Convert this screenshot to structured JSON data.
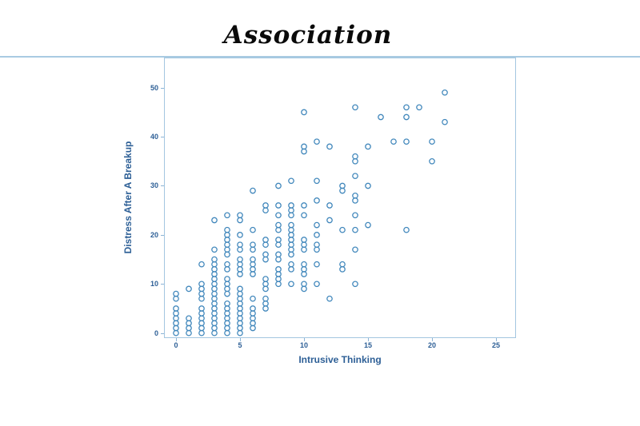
{
  "header": {
    "title": "Association"
  },
  "colors": {
    "frame": "#a3c6e0",
    "title_rule": "#a9cbe2",
    "tick_mark": "#8db4d6",
    "tick_label": "#2d5f96",
    "axis_label": "#2d5f96",
    "marker": "#4288bc",
    "title_text": "#0a0a0a",
    "background": "#ffffff"
  },
  "chart_data": {
    "type": "scatter",
    "title": "Association",
    "xlabel": "Intrusive Thinking",
    "ylabel": "Distress After A Breakup",
    "xlim": [
      -0.94,
      26.56
    ],
    "ylim": [
      -1.03,
      56.14
    ],
    "xticks": [
      0,
      5,
      10,
      15,
      20,
      25
    ],
    "yticks": [
      0,
      10,
      20,
      30,
      40,
      50
    ],
    "grid": false,
    "legend": null,
    "marker": {
      "shape": "open-circle",
      "radius_px": 3.2,
      "color": "#4288bc"
    },
    "points": [
      [
        0,
        0
      ],
      [
        0,
        1
      ],
      [
        0,
        2
      ],
      [
        0,
        3
      ],
      [
        0,
        4
      ],
      [
        0,
        5
      ],
      [
        0,
        7
      ],
      [
        0,
        8
      ],
      [
        1,
        0
      ],
      [
        1,
        1
      ],
      [
        1,
        2
      ],
      [
        1,
        3
      ],
      [
        1,
        9
      ],
      [
        2,
        0
      ],
      [
        2,
        1
      ],
      [
        2,
        2
      ],
      [
        2,
        3
      ],
      [
        2,
        4
      ],
      [
        2,
        5
      ],
      [
        2,
        7
      ],
      [
        2,
        8
      ],
      [
        2,
        9
      ],
      [
        2,
        10
      ],
      [
        2,
        14
      ],
      [
        3,
        0
      ],
      [
        3,
        1
      ],
      [
        3,
        2
      ],
      [
        3,
        3
      ],
      [
        3,
        4
      ],
      [
        3,
        5
      ],
      [
        3,
        6
      ],
      [
        3,
        7
      ],
      [
        3,
        8
      ],
      [
        3,
        9
      ],
      [
        3,
        10
      ],
      [
        3,
        11
      ],
      [
        3,
        12
      ],
      [
        3,
        13
      ],
      [
        3,
        14
      ],
      [
        3,
        15
      ],
      [
        3,
        17
      ],
      [
        3,
        23
      ],
      [
        4,
        0
      ],
      [
        4,
        1
      ],
      [
        4,
        2
      ],
      [
        4,
        3
      ],
      [
        4,
        4
      ],
      [
        4,
        5
      ],
      [
        4,
        6
      ],
      [
        4,
        8
      ],
      [
        4,
        9
      ],
      [
        4,
        10
      ],
      [
        4,
        11
      ],
      [
        4,
        13
      ],
      [
        4,
        14
      ],
      [
        4,
        16
      ],
      [
        4,
        17
      ],
      [
        4,
        18
      ],
      [
        4,
        19
      ],
      [
        4,
        20
      ],
      [
        4,
        21
      ],
      [
        4,
        24
      ],
      [
        5,
        0
      ],
      [
        5,
        1
      ],
      [
        5,
        2
      ],
      [
        5,
        3
      ],
      [
        5,
        4
      ],
      [
        5,
        5
      ],
      [
        5,
        6
      ],
      [
        5,
        7
      ],
      [
        5,
        8
      ],
      [
        5,
        9
      ],
      [
        5,
        12
      ],
      [
        5,
        13
      ],
      [
        5,
        14
      ],
      [
        5,
        15
      ],
      [
        5,
        17
      ],
      [
        5,
        18
      ],
      [
        5,
        20
      ],
      [
        5,
        23
      ],
      [
        5,
        24
      ],
      [
        6,
        1
      ],
      [
        6,
        2
      ],
      [
        6,
        3
      ],
      [
        6,
        4
      ],
      [
        6,
        5
      ],
      [
        6,
        7
      ],
      [
        6,
        12
      ],
      [
        6,
        13
      ],
      [
        6,
        14
      ],
      [
        6,
        15
      ],
      [
        6,
        17
      ],
      [
        6,
        18
      ],
      [
        6,
        21
      ],
      [
        6,
        29
      ],
      [
        7,
        5
      ],
      [
        7,
        6
      ],
      [
        7,
        7
      ],
      [
        7,
        9
      ],
      [
        7,
        10
      ],
      [
        7,
        11
      ],
      [
        7,
        15
      ],
      [
        7,
        16
      ],
      [
        7,
        18
      ],
      [
        7,
        19
      ],
      [
        7,
        25
      ],
      [
        7,
        26
      ],
      [
        8,
        10
      ],
      [
        8,
        11
      ],
      [
        8,
        12
      ],
      [
        8,
        13
      ],
      [
        8,
        15
      ],
      [
        8,
        16
      ],
      [
        8,
        18
      ],
      [
        8,
        19
      ],
      [
        8,
        21
      ],
      [
        8,
        22
      ],
      [
        8,
        24
      ],
      [
        8,
        26
      ],
      [
        8,
        30
      ],
      [
        9,
        10
      ],
      [
        9,
        13
      ],
      [
        9,
        14
      ],
      [
        9,
        16
      ],
      [
        9,
        17
      ],
      [
        9,
        18
      ],
      [
        9,
        19
      ],
      [
        9,
        20
      ],
      [
        9,
        21
      ],
      [
        9,
        22
      ],
      [
        9,
        24
      ],
      [
        9,
        25
      ],
      [
        9,
        26
      ],
      [
        9,
        31
      ],
      [
        10,
        9
      ],
      [
        10,
        10
      ],
      [
        10,
        12
      ],
      [
        10,
        13
      ],
      [
        10,
        14
      ],
      [
        10,
        17
      ],
      [
        10,
        18
      ],
      [
        10,
        19
      ],
      [
        10,
        24
      ],
      [
        10,
        26
      ],
      [
        10,
        37
      ],
      [
        10,
        38
      ],
      [
        10,
        45
      ],
      [
        11,
        10
      ],
      [
        11,
        14
      ],
      [
        11,
        17
      ],
      [
        11,
        18
      ],
      [
        11,
        20
      ],
      [
        11,
        22
      ],
      [
        11,
        27
      ],
      [
        11,
        31
      ],
      [
        11,
        39
      ],
      [
        12,
        7
      ],
      [
        12,
        23
      ],
      [
        12,
        26
      ],
      [
        12,
        38
      ],
      [
        13,
        13
      ],
      [
        13,
        14
      ],
      [
        13,
        21
      ],
      [
        13,
        29
      ],
      [
        13,
        30
      ],
      [
        14,
        10
      ],
      [
        14,
        17
      ],
      [
        14,
        21
      ],
      [
        14,
        24
      ],
      [
        14,
        27
      ],
      [
        14,
        28
      ],
      [
        14,
        32
      ],
      [
        14,
        35
      ],
      [
        14,
        36
      ],
      [
        14,
        46
      ],
      [
        15,
        22
      ],
      [
        15,
        30
      ],
      [
        15,
        38
      ],
      [
        16,
        44
      ],
      [
        17,
        39
      ],
      [
        18,
        21
      ],
      [
        18,
        39
      ],
      [
        18,
        44
      ],
      [
        18,
        46
      ],
      [
        19,
        46
      ],
      [
        20,
        35
      ],
      [
        20,
        39
      ],
      [
        21,
        43
      ],
      [
        21,
        49
      ]
    ]
  }
}
